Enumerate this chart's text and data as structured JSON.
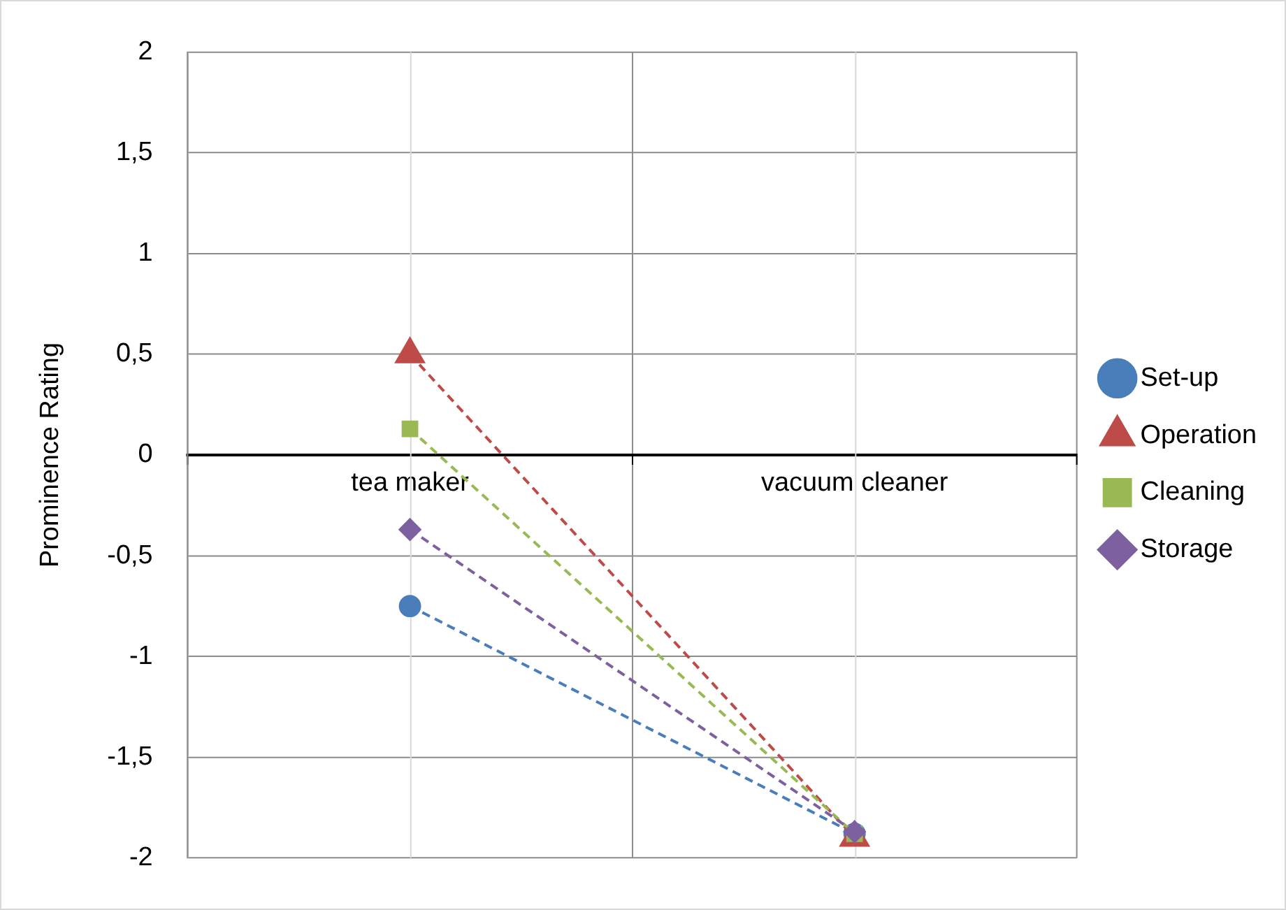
{
  "chart_data": {
    "type": "line",
    "ylabel": "Prominence Rating",
    "categories": [
      "tea maker",
      "vacuum cleaner"
    ],
    "series": [
      {
        "name": "Set-up",
        "color": "#4a7ebb",
        "values": [
          -0.75,
          -1.88
        ],
        "marker": "circle"
      },
      {
        "name": "Operation",
        "color": "#be4b48",
        "values": [
          0.5,
          -1.9
        ],
        "marker": "triangle"
      },
      {
        "name": "Cleaning",
        "color": "#98b954",
        "values": [
          0.13,
          -1.88
        ],
        "marker": "square"
      },
      {
        "name": "Storage",
        "color": "#7d60a0",
        "values": [
          -0.37,
          -1.87
        ],
        "marker": "diamond"
      }
    ],
    "ylim": [
      -2,
      2
    ],
    "yticks": [
      {
        "value": -2,
        "label": "-2"
      },
      {
        "value": -1.5,
        "label": "-1,5"
      },
      {
        "value": -1,
        "label": "-1"
      },
      {
        "value": -0.5,
        "label": "-0,5"
      },
      {
        "value": 0,
        "label": "0"
      },
      {
        "value": 0.5,
        "label": "0,5"
      },
      {
        "value": 1,
        "label": "1"
      },
      {
        "value": 1.5,
        "label": "1,5"
      },
      {
        "value": 2,
        "label": "2"
      }
    ],
    "grid": true,
    "legend": "right",
    "line_style": "dashed"
  }
}
